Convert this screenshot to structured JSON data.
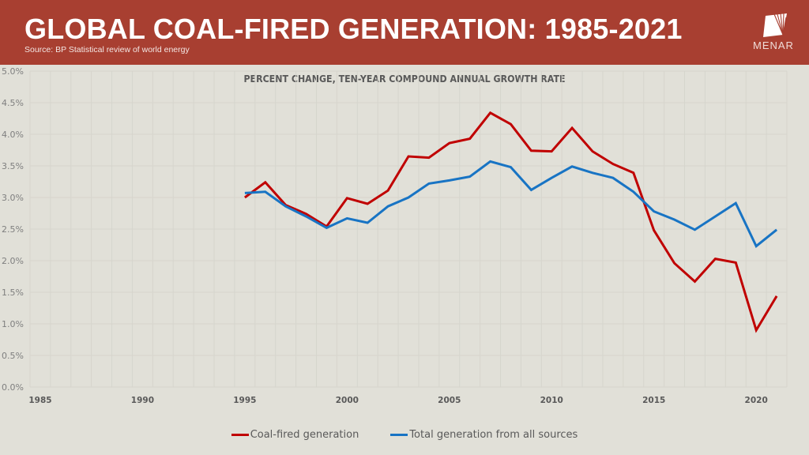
{
  "header": {
    "title": "GLOBAL COAL-FIRED GENERATION: 1985-2021",
    "source": "Source: BP Statistical review of world energy",
    "logo_text": "MENAR",
    "logo_icon": "menar-logo-icon",
    "background_color": "#A83F31"
  },
  "chart_data": {
    "type": "line",
    "title": "PERCENT CHANGE, TEN-YEAR COMPOUND ANNUAL GROWTH RATE",
    "xlabel": "",
    "ylabel": "",
    "x": [
      1985,
      1986,
      1987,
      1988,
      1989,
      1990,
      1991,
      1992,
      1993,
      1994,
      1995,
      1996,
      1997,
      1998,
      1999,
      2000,
      2001,
      2002,
      2003,
      2004,
      2005,
      2006,
      2007,
      2008,
      2009,
      2010,
      2011,
      2012,
      2013,
      2014,
      2015,
      2016,
      2017,
      2018,
      2019,
      2020,
      2021
    ],
    "x_tick_labels": [
      "1985",
      "1990",
      "1995",
      "2000",
      "2005",
      "2010",
      "2015",
      "2020"
    ],
    "x_tick_values": [
      1985,
      1990,
      1995,
      2000,
      2005,
      2010,
      2015,
      2020
    ],
    "y_tick_labels": [
      "0.0%",
      "0.5%",
      "1.0%",
      "1.5%",
      "2.0%",
      "2.5%",
      "3.0%",
      "3.5%",
      "4.0%",
      "4.5%",
      "5.0%"
    ],
    "ylim": [
      0,
      5.0
    ],
    "y_unit": "%",
    "grid": true,
    "legend_position": "bottom",
    "series": [
      {
        "name": "Coal-fired generation",
        "color": "#C00000",
        "values": [
          null,
          null,
          null,
          null,
          null,
          null,
          null,
          null,
          null,
          null,
          3.0,
          3.24,
          2.88,
          2.74,
          2.54,
          2.99,
          2.9,
          3.11,
          3.65,
          3.63,
          3.86,
          3.93,
          4.34,
          4.16,
          3.74,
          3.73,
          4.1,
          3.73,
          3.53,
          3.39,
          2.48,
          1.96,
          1.67,
          2.03,
          1.97,
          0.9,
          1.44
        ]
      },
      {
        "name": "Total generation from all sources",
        "color": "#1874C4",
        "values": [
          null,
          null,
          null,
          null,
          null,
          null,
          null,
          null,
          null,
          null,
          3.07,
          3.09,
          2.86,
          2.7,
          2.52,
          2.67,
          2.6,
          2.86,
          3.0,
          3.22,
          3.27,
          3.33,
          3.57,
          3.48,
          3.12,
          3.31,
          3.49,
          3.39,
          3.31,
          3.09,
          2.78,
          2.65,
          2.49,
          2.7,
          2.91,
          2.23,
          2.49
        ]
      }
    ]
  }
}
